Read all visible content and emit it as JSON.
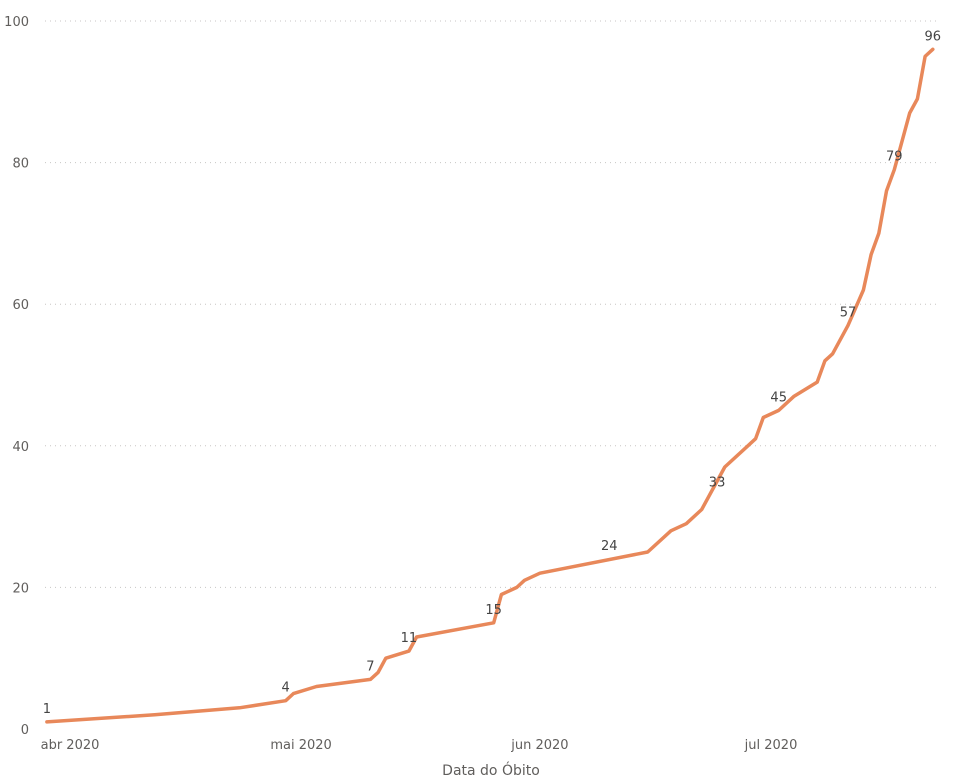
{
  "colors": {
    "line": "#e8885a",
    "grid": "#c8c6c4",
    "text": "#605e5c"
  },
  "chart_data": {
    "type": "line",
    "title": "",
    "xlabel": "Data do Óbito",
    "ylabel": "",
    "ylim": [
      0,
      100
    ],
    "yticks": [
      0,
      20,
      40,
      60,
      80,
      100
    ],
    "grid": true,
    "x_ticks": [
      {
        "date": "2020-04-01",
        "label": "abr 2020"
      },
      {
        "date": "2020-05-01",
        "label": "mai 2020"
      },
      {
        "date": "2020-06-01",
        "label": "jun 2020"
      },
      {
        "date": "2020-07-01",
        "label": "jul 2020"
      }
    ],
    "series": [
      {
        "points": [
          {
            "x": "2020-03-29",
            "y": 1
          },
          {
            "x": "2020-04-12",
            "y": 2
          },
          {
            "x": "2020-04-23",
            "y": 3
          },
          {
            "x": "2020-04-29",
            "y": 4
          },
          {
            "x": "2020-04-30",
            "y": 5
          },
          {
            "x": "2020-05-03",
            "y": 6
          },
          {
            "x": "2020-05-10",
            "y": 7
          },
          {
            "x": "2020-05-11",
            "y": 8
          },
          {
            "x": "2020-05-12",
            "y": 10
          },
          {
            "x": "2020-05-15",
            "y": 11
          },
          {
            "x": "2020-05-16",
            "y": 13
          },
          {
            "x": "2020-05-26",
            "y": 15
          },
          {
            "x": "2020-05-27",
            "y": 19
          },
          {
            "x": "2020-05-29",
            "y": 20
          },
          {
            "x": "2020-05-30",
            "y": 21
          },
          {
            "x": "2020-06-01",
            "y": 22
          },
          {
            "x": "2020-06-15",
            "y": 25
          },
          {
            "x": "2020-06-18",
            "y": 28
          },
          {
            "x": "2020-06-20",
            "y": 29
          },
          {
            "x": "2020-06-22",
            "y": 31
          },
          {
            "x": "2020-06-25",
            "y": 37
          },
          {
            "x": "2020-06-28",
            "y": 40
          },
          {
            "x": "2020-06-29",
            "y": 41
          },
          {
            "x": "2020-06-30",
            "y": 44
          },
          {
            "x": "2020-07-02",
            "y": 45
          },
          {
            "x": "2020-07-04",
            "y": 47
          },
          {
            "x": "2020-07-07",
            "y": 49
          },
          {
            "x": "2020-07-08",
            "y": 52
          },
          {
            "x": "2020-07-09",
            "y": 53
          },
          {
            "x": "2020-07-11",
            "y": 57
          },
          {
            "x": "2020-07-13",
            "y": 62
          },
          {
            "x": "2020-07-14",
            "y": 67
          },
          {
            "x": "2020-07-15",
            "y": 70
          },
          {
            "x": "2020-07-16",
            "y": 76
          },
          {
            "x": "2020-07-17",
            "y": 79
          },
          {
            "x": "2020-07-19",
            "y": 87
          },
          {
            "x": "2020-07-20",
            "y": 89
          },
          {
            "x": "2020-07-21",
            "y": 95
          },
          {
            "x": "2020-07-22",
            "y": 96
          }
        ]
      }
    ],
    "data_labels": [
      {
        "x": "2020-03-29",
        "y": 1,
        "text": "1"
      },
      {
        "x": "2020-04-29",
        "y": 4,
        "text": "4"
      },
      {
        "x": "2020-05-10",
        "y": 7,
        "text": "7"
      },
      {
        "x": "2020-05-15",
        "y": 11,
        "text": "11"
      },
      {
        "x": "2020-05-26",
        "y": 15,
        "text": "15"
      },
      {
        "x": "2020-06-10",
        "y": 24,
        "text": "24"
      },
      {
        "x": "2020-06-24",
        "y": 33,
        "text": "33"
      },
      {
        "x": "2020-07-02",
        "y": 45,
        "text": "45"
      },
      {
        "x": "2020-07-11",
        "y": 57,
        "text": "57"
      },
      {
        "x": "2020-07-17",
        "y": 79,
        "text": "79"
      },
      {
        "x": "2020-07-22",
        "y": 96,
        "text": "96"
      }
    ]
  }
}
